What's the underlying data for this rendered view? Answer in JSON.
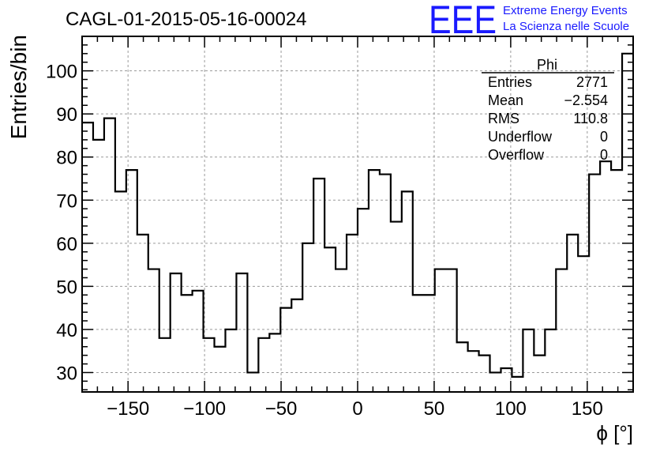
{
  "title": "CAGL-01-2015-05-16-00024",
  "logo": {
    "mark": "EEE",
    "line1": "Extreme Energy Events",
    "line2": "La Scienza nelle Scuole",
    "color": "#1a1aff"
  },
  "stats": {
    "header": "Phi",
    "rows": [
      {
        "label": "Entries",
        "value": "2771"
      },
      {
        "label": "Mean",
        "value": "−2.554"
      },
      {
        "label": "RMS",
        "value": "110.8"
      },
      {
        "label": "Underflow",
        "value": "0"
      },
      {
        "label": "Overflow",
        "value": "0"
      }
    ]
  },
  "chart_data": {
    "type": "histogram",
    "title": "CAGL-01-2015-05-16-00024",
    "xlabel": "ϕ [°]",
    "ylabel": "Entries/bin",
    "xlim": [
      -180,
      180
    ],
    "ylim": [
      25.5,
      108
    ],
    "xticks": [
      -150,
      -100,
      -50,
      0,
      50,
      100,
      150
    ],
    "yticks": [
      30,
      40,
      50,
      60,
      70,
      80,
      90,
      100
    ],
    "grid": true,
    "bin_width": 7.2,
    "bin_start": -180,
    "values": [
      88,
      84,
      89,
      72,
      77,
      62,
      54,
      38,
      53,
      48,
      49,
      38,
      36,
      40,
      53,
      30,
      38,
      39,
      45,
      47,
      60,
      75,
      59,
      54,
      62,
      68,
      77,
      76,
      65,
      72,
      48,
      48,
      54,
      54,
      37,
      35,
      34,
      30,
      31,
      29,
      40,
      34,
      40,
      54,
      62,
      57,
      76,
      79,
      77,
      104
    ],
    "line_color": "#000000"
  }
}
